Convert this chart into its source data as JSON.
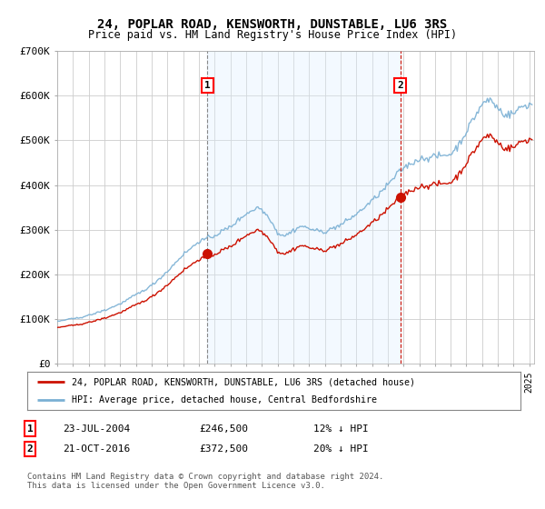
{
  "title": "24, POPLAR ROAD, KENSWORTH, DUNSTABLE, LU6 3RS",
  "subtitle": "Price paid vs. HM Land Registry's House Price Index (HPI)",
  "title_fontsize": 10,
  "subtitle_fontsize": 8.5,
  "plot_bg_color": "#ffffff",
  "grid_color": "#cccccc",
  "shade_color": "#ddeeff",
  "legend_line1": "24, POPLAR ROAD, KENSWORTH, DUNSTABLE, LU6 3RS (detached house)",
  "legend_line2": "HPI: Average price, detached house, Central Bedfordshire",
  "hpi_color": "#7ab0d4",
  "price_color": "#cc1100",
  "sale1_date": 2004.55,
  "sale1_price": 246500,
  "sale1_label": "1",
  "sale2_date": 2016.8,
  "sale2_price": 372500,
  "sale2_label": "2",
  "footnote": "Contains HM Land Registry data © Crown copyright and database right 2024.\nThis data is licensed under the Open Government Licence v3.0.",
  "table_rows": [
    {
      "num": "1",
      "date": "23-JUL-2004",
      "price": "£246,500",
      "hpi": "12% ↓ HPI"
    },
    {
      "num": "2",
      "date": "21-OCT-2016",
      "price": "£372,500",
      "hpi": "20% ↓ HPI"
    }
  ],
  "ylim": [
    0,
    700000
  ],
  "yticks": [
    0,
    100000,
    200000,
    300000,
    400000,
    500000,
    600000,
    700000
  ],
  "ytick_labels": [
    "£0",
    "£100K",
    "£200K",
    "£300K",
    "£400K",
    "£500K",
    "£600K",
    "£700K"
  ],
  "xlim_start": 1995.0,
  "xlim_end": 2025.3
}
